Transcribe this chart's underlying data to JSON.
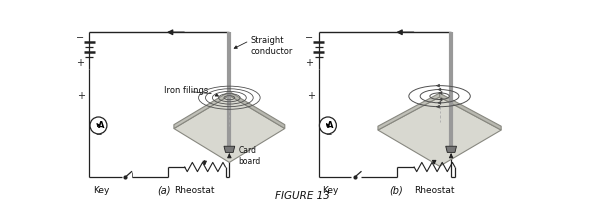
{
  "bg_color": "#ffffff",
  "text_color": "#111111",
  "line_color": "#222222",
  "board_fill": "#d8d8d0",
  "board_edge": "#888880",
  "board_side_fill": "#b8b8b0",
  "conductor_fill": "#aaaaaa",
  "ring_color": "#444444",
  "arrow_gray": "#555555",
  "connector_fill": "#777777",
  "fig_title": "FIGURE 13",
  "label_a": "(a)",
  "label_b": "(b)",
  "label_key": "Key",
  "label_rheostat": "Rheostat",
  "label_straight": "Straight\nconductor",
  "label_iron": "Iron filings",
  "label_card": "Card\nboard"
}
